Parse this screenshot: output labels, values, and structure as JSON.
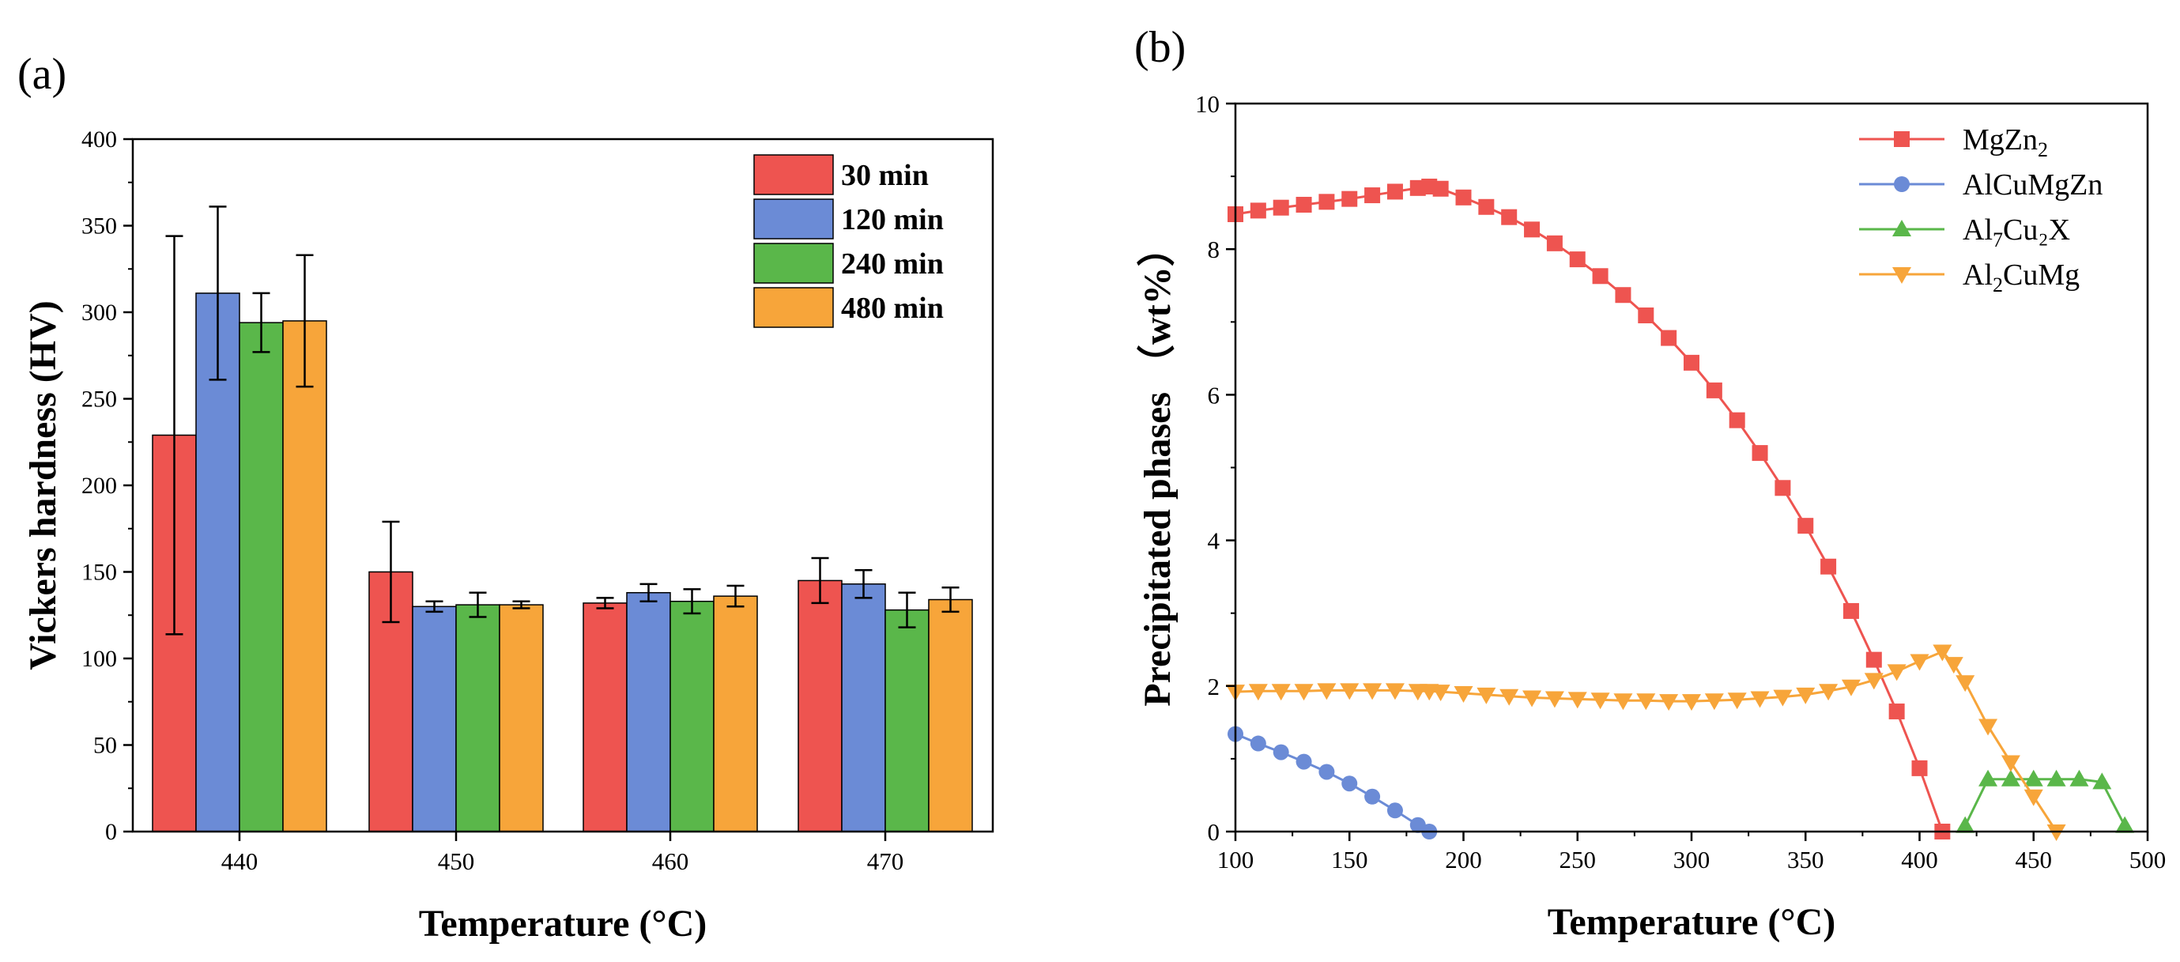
{
  "panels": {
    "a": "(a)",
    "b": "(b)"
  },
  "chart_data": [
    {
      "type": "bar",
      "panel": "(a)",
      "xlabel": "Temperature (°C)",
      "ylabel": "Vickers hardness (HV)",
      "ylim": [
        0,
        400
      ],
      "yticks": [
        0,
        50,
        100,
        150,
        200,
        250,
        300,
        350,
        400
      ],
      "categories": [
        "440",
        "450",
        "460",
        "470"
      ],
      "series": [
        {
          "name": "30 min",
          "color": "#ee5450",
          "values": [
            229,
            150,
            132,
            145
          ],
          "errors": [
            115,
            29,
            3,
            13
          ]
        },
        {
          "name": "120 min",
          "color": "#6b8bd6",
          "values": [
            311,
            130,
            138,
            143
          ],
          "errors": [
            50,
            3,
            5,
            8
          ]
        },
        {
          "name": "240 min",
          "color": "#5ab74a",
          "values": [
            294,
            131,
            133,
            128
          ],
          "errors": [
            17,
            7,
            7,
            10
          ]
        },
        {
          "name": "480 min",
          "color": "#f7a53a",
          "values": [
            295,
            131,
            136,
            134
          ],
          "errors": [
            38,
            2,
            6,
            7
          ]
        }
      ],
      "legend_position": "top-right"
    },
    {
      "type": "line",
      "panel": "(b)",
      "xlabel": "Temperature (°C)",
      "ylabel": "Precipitated phases （wt%）",
      "xlim": [
        100,
        500
      ],
      "ylim": [
        0,
        10
      ],
      "xticks": [
        100,
        150,
        200,
        250,
        300,
        350,
        400,
        450,
        500
      ],
      "yticks": [
        0,
        2,
        4,
        6,
        8,
        10
      ],
      "series": [
        {
          "name": "MgZn2",
          "label_base": "MgZn",
          "label_sub": "2",
          "label_tail": "",
          "color": "#ee5450",
          "marker": "square",
          "x": [
            100,
            110,
            120,
            130,
            140,
            150,
            160,
            170,
            180,
            185,
            190,
            200,
            210,
            220,
            230,
            240,
            250,
            260,
            270,
            280,
            290,
            300,
            310,
            320,
            330,
            340,
            350,
            360,
            370,
            380,
            390,
            400,
            410
          ],
          "y": [
            8.48,
            8.53,
            8.57,
            8.61,
            8.65,
            8.69,
            8.74,
            8.79,
            8.84,
            8.86,
            8.83,
            8.71,
            8.58,
            8.44,
            8.27,
            8.08,
            7.86,
            7.63,
            7.37,
            7.09,
            6.78,
            6.44,
            6.06,
            5.65,
            5.2,
            4.72,
            4.2,
            3.64,
            3.03,
            2.36,
            1.65,
            0.87,
            0.0
          ]
        },
        {
          "name": "AlCuMgZn",
          "label_base": "AlCuMgZn",
          "label_sub": "",
          "label_tail": "",
          "color": "#6b8bd6",
          "marker": "circle",
          "x": [
            100,
            110,
            120,
            130,
            140,
            150,
            160,
            170,
            180,
            185
          ],
          "y": [
            1.34,
            1.21,
            1.09,
            0.96,
            0.82,
            0.66,
            0.48,
            0.29,
            0.09,
            0.0
          ]
        },
        {
          "name": "Al7Cu2X",
          "label_base": "Al",
          "label_sub": "7",
          "label_tail": "Cu₂X",
          "color": "#5ab74a",
          "marker": "triangle-up",
          "x": [
            420,
            430,
            440,
            450,
            460,
            470,
            480,
            490
          ],
          "y": [
            0.08,
            0.72,
            0.72,
            0.72,
            0.72,
            0.72,
            0.68,
            0.08
          ]
        },
        {
          "name": "Al2CuMg",
          "label_base": "Al",
          "label_sub": "2",
          "label_tail": "CuMg",
          "color": "#f7a53a",
          "marker": "triangle-down",
          "x": [
            100,
            110,
            120,
            130,
            140,
            150,
            160,
            170,
            180,
            185,
            190,
            200,
            210,
            220,
            230,
            240,
            250,
            260,
            270,
            280,
            290,
            300,
            310,
            320,
            330,
            340,
            350,
            360,
            370,
            380,
            390,
            400,
            410,
            415,
            420,
            430,
            440,
            450,
            460
          ],
          "y": [
            1.92,
            1.93,
            1.93,
            1.93,
            1.94,
            1.94,
            1.94,
            1.94,
            1.93,
            1.93,
            1.92,
            1.9,
            1.88,
            1.86,
            1.84,
            1.83,
            1.82,
            1.81,
            1.8,
            1.8,
            1.79,
            1.79,
            1.8,
            1.81,
            1.83,
            1.85,
            1.88,
            1.93,
            1.99,
            2.08,
            2.2,
            2.34,
            2.47,
            2.3,
            2.05,
            1.45,
            0.95,
            0.48,
            0.0
          ]
        }
      ],
      "legend_position": "top-right"
    }
  ]
}
